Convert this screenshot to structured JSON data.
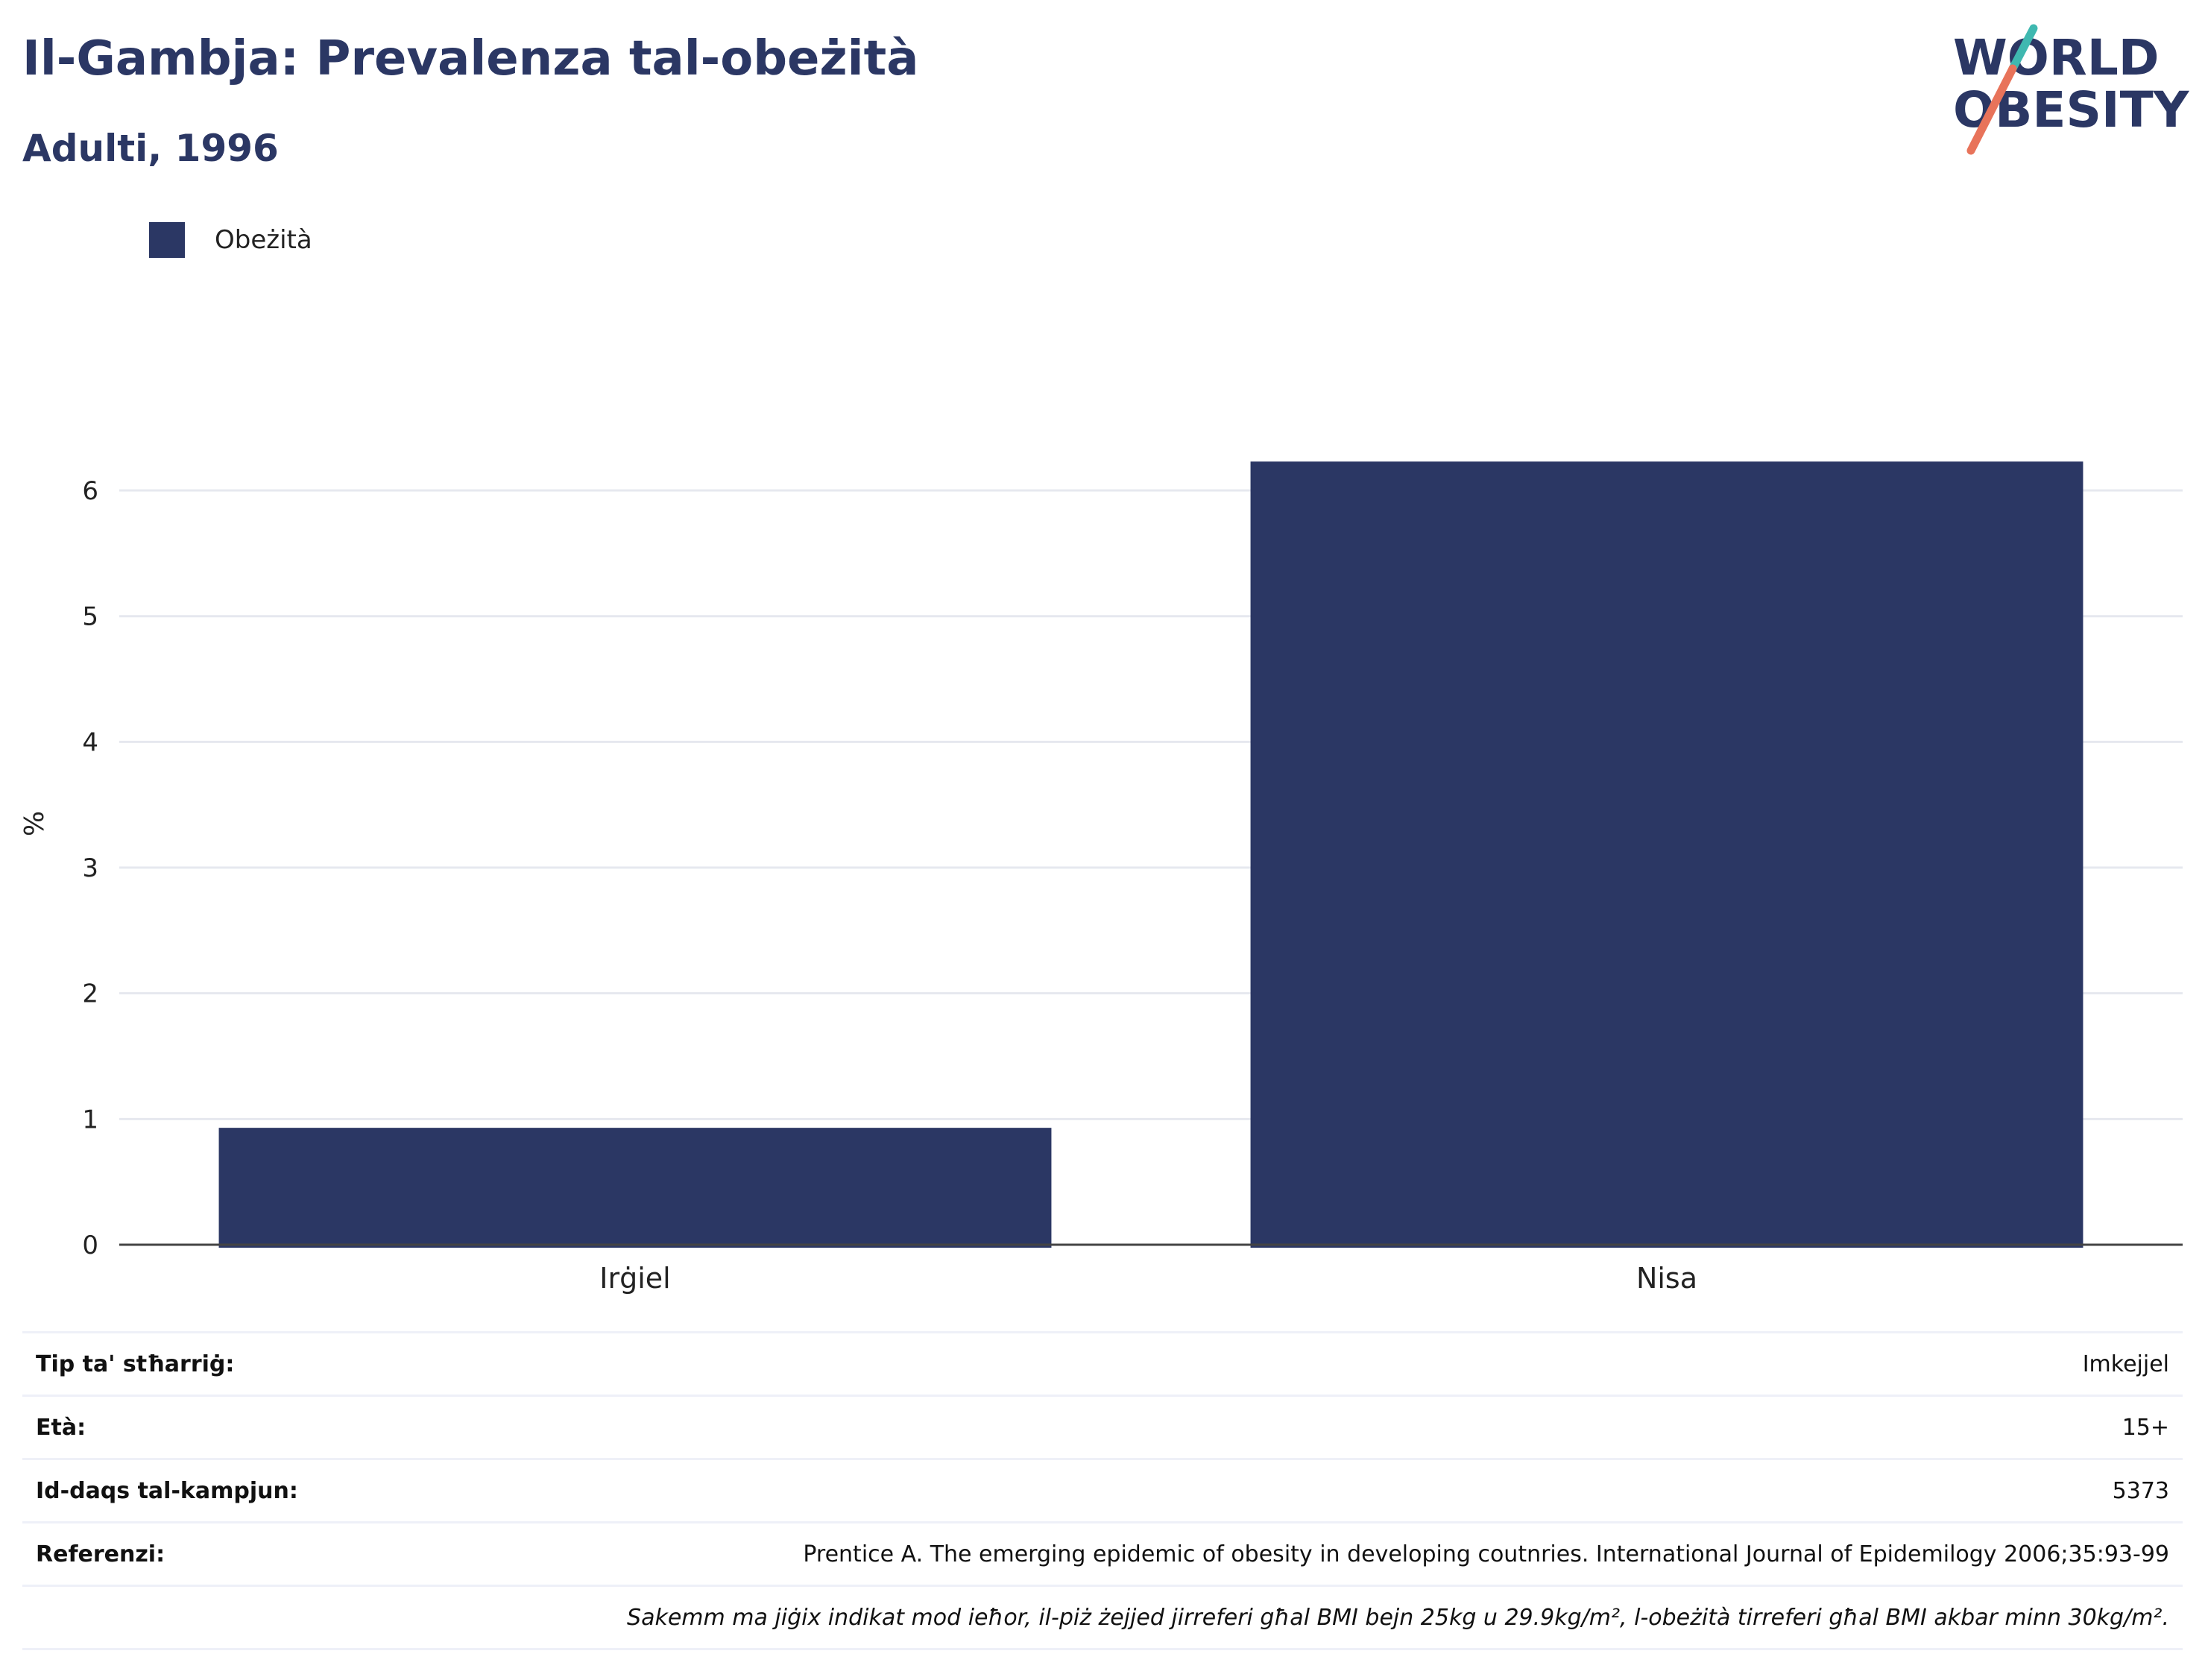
{
  "header": {
    "title": "Il-Gambja: Prevalenza tal-obeżità",
    "subtitle": "Adulti, 1996"
  },
  "logo": {
    "line1": "WORLD",
    "line2": "OBESITY",
    "colors": {
      "text": "#2b3764",
      "slash_top": "#3fb8b0",
      "slash_bottom": "#e8735a"
    }
  },
  "chart_data": {
    "type": "bar",
    "categories": [
      "Irġiel",
      "Nisa"
    ],
    "series": [
      {
        "name": "Obeżità",
        "values": [
          0.93,
          6.23
        ],
        "color": "#2b3764"
      }
    ],
    "ylabel": "%",
    "xlabel": "",
    "ylim": [
      0,
      6.7
    ],
    "yticks": [
      0,
      1,
      2,
      3,
      4,
      5,
      6
    ],
    "grid": true,
    "legend_position": "top-left"
  },
  "info": {
    "rows": [
      {
        "key": "Tip ta' stħarriġ:",
        "value": "Imkejjel"
      },
      {
        "key": "Età:",
        "value": "15+"
      },
      {
        "key": "Id-daqs tal-kampjun:",
        "value": "5373"
      },
      {
        "key": "Referenzi:",
        "value": "Prentice A. The emerging epidemic of obesity in developing coutnries. International Journal of Epidemilogy 2006;35:93-99"
      }
    ],
    "note": "Sakemm ma jiġix indikat mod ieħor, il-piż żejjed jirreferi għal BMI bejn 25kg u 29.9kg/m², l-obeżità tirreferi għal BMI akbar minn 30kg/m²."
  }
}
